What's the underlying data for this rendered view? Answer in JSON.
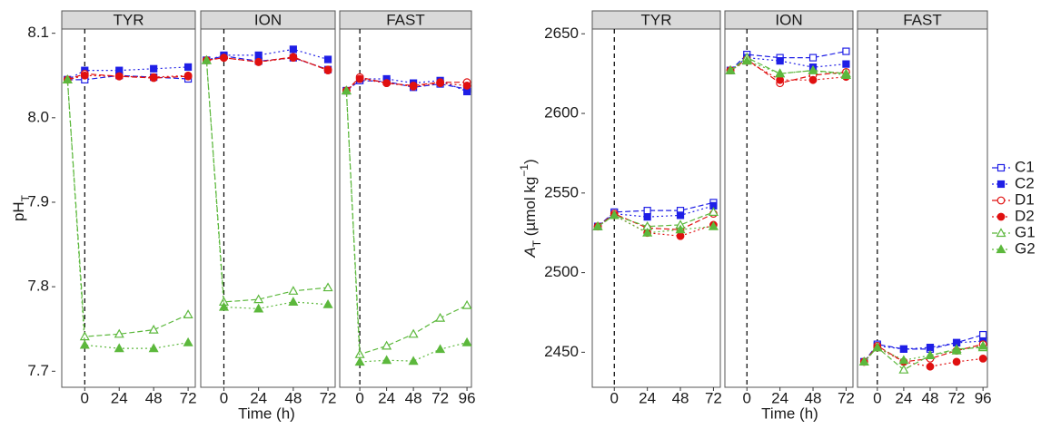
{
  "chart_data": {
    "type": "line",
    "x_label": "Time (h)",
    "vline": 0,
    "series": [
      {
        "name": "C1",
        "color": "#1f1fe6",
        "marker": "square",
        "filled": false,
        "dash": "6,3"
      },
      {
        "name": "C2",
        "color": "#1f1fe6",
        "marker": "square",
        "filled": true,
        "dash": "2,3"
      },
      {
        "name": "D1",
        "color": "#e01010",
        "marker": "circle",
        "filled": false,
        "dash": "6,3"
      },
      {
        "name": "D2",
        "color": "#e01010",
        "marker": "circle",
        "filled": true,
        "dash": "2,3"
      },
      {
        "name": "G1",
        "color": "#5cb83c",
        "marker": "triangle",
        "filled": false,
        "dash": "6,3"
      },
      {
        "name": "G2",
        "color": "#5cb83c",
        "marker": "triangle",
        "filled": true,
        "dash": "2,3"
      }
    ],
    "charts": [
      {
        "y_label": [
          {
            "text": "pH"
          },
          {
            "text": "T",
            "style": "sub"
          }
        ],
        "ylim": [
          7.681,
          8.105
        ],
        "yticks": [
          7.7,
          7.8,
          7.9,
          {
            "value": 8,
            "label": "8.0"
          },
          8.1
        ],
        "panels": [
          {
            "title": "TYR",
            "x": [
              -12,
              0,
              24,
              48,
              72
            ],
            "xlim": [
              -16,
              77
            ],
            "xticks": [
              0,
              24,
              48,
              72
            ],
            "values": [
              [
                8.045,
                8.045,
                8.05,
                8.048,
                8.046
              ],
              [
                8.045,
                8.056,
                8.056,
                8.058,
                8.06
              ],
              [
                8.045,
                8.052,
                8.049,
                8.047,
                8.049
              ],
              [
                8.045,
                8.05,
                8.049,
                8.048,
                8.05
              ],
              [
                8.045,
                7.741,
                7.744,
                7.749,
                7.767
              ],
              [
                8.045,
                7.731,
                7.727,
                7.727,
                7.734
              ]
            ]
          },
          {
            "title": "ION",
            "x": [
              -12,
              0,
              24,
              48,
              72
            ],
            "xlim": [
              -16,
              77
            ],
            "xticks": [
              0,
              24,
              48,
              72
            ],
            "values": [
              [
                8.068,
                8.073,
                8.067,
                8.071,
                8.057
              ],
              [
                8.068,
                8.074,
                8.074,
                8.081,
                8.069
              ],
              [
                8.068,
                8.071,
                8.066,
                8.072,
                8.056
              ],
              [
                8.068,
                8.071,
                8.066,
                8.071,
                8.057
              ],
              [
                8.068,
                7.782,
                7.785,
                7.795,
                7.799
              ],
              [
                8.068,
                7.776,
                7.774,
                7.782,
                7.779
              ]
            ]
          },
          {
            "title": "FAST",
            "x": [
              -12,
              0,
              24,
              48,
              72,
              96
            ],
            "xlim": [
              -18,
              100
            ],
            "xticks": [
              0,
              24,
              48,
              72,
              96
            ],
            "values": [
              [
                8.032,
                8.044,
                8.043,
                8.036,
                8.04,
                8.034
              ],
              [
                8.032,
                8.046,
                8.046,
                8.041,
                8.044,
                8.031
              ],
              [
                8.032,
                8.048,
                8.041,
                8.038,
                8.042,
                8.042
              ],
              [
                8.032,
                8.046,
                8.041,
                8.037,
                8.041,
                8.038
              ],
              [
                8.032,
                7.72,
                7.73,
                7.744,
                7.763,
                7.778
              ],
              [
                8.032,
                7.711,
                7.713,
                7.712,
                7.726,
                7.734
              ]
            ]
          }
        ]
      },
      {
        "y_label": [
          {
            "text": "A",
            "style": "italic"
          },
          {
            "text": "T",
            "style": "sub"
          },
          {
            "text": " (µmol kg"
          },
          {
            "text": "−1",
            "style": "sup"
          },
          {
            "text": ")"
          }
        ],
        "ylim": [
          2428,
          2653
        ],
        "yticks": [
          2450,
          2500,
          2550,
          2600,
          2650
        ],
        "panels": [
          {
            "title": "TYR",
            "x": [
              -12,
              0,
              24,
              48,
              72
            ],
            "xlim": [
              -16,
              77
            ],
            "xticks": [
              0,
              24,
              48,
              72
            ],
            "values": [
              [
                2529,
                2538,
                2539,
                2539,
                2544
              ],
              [
                2529,
                2537,
                2535,
                2536,
                2542
              ],
              [
                2529,
                2537,
                2528,
                2527,
                2537
              ],
              [
                2529,
                2536,
                2525,
                2523,
                2530
              ],
              [
                2529,
                2536,
                2529,
                2530,
                2538
              ],
              [
                2529,
                2536,
                2525,
                2527,
                2529
              ]
            ]
          },
          {
            "title": "ION",
            "x": [
              -12,
              0,
              24,
              48,
              72
            ],
            "xlim": [
              -16,
              77
            ],
            "xticks": [
              0,
              24,
              48,
              72
            ],
            "values": [
              [
                2627,
                2637,
                2635,
                2635,
                2639
              ],
              [
                2627,
                2635,
                2633,
                2629,
                2631
              ],
              [
                2627,
                2634,
                2619,
                2624,
                2626
              ],
              [
                2627,
                2633,
                2621,
                2621,
                2623
              ],
              [
                2627,
                2635,
                2625,
                2627,
                2625
              ],
              [
                2627,
                2633,
                2625,
                2627,
                2624
              ]
            ]
          },
          {
            "title": "FAST",
            "x": [
              -12,
              0,
              24,
              48,
              72,
              96
            ],
            "xlim": [
              -18,
              100
            ],
            "xticks": [
              0,
              24,
              48,
              72,
              96
            ],
            "values": [
              [
                2444,
                2455,
                2452,
                2452,
                2456,
                2461
              ],
              [
                2444,
                2454,
                2452,
                2453,
                2456,
                2457
              ],
              [
                2444,
                2454,
                2444,
                2446,
                2451,
                2455
              ],
              [
                2444,
                2453,
                2444,
                2441,
                2444,
                2446
              ],
              [
                2444,
                2453,
                2439,
                2448,
                2452,
                2453
              ],
              [
                2444,
                2453,
                2445,
                2448,
                2451,
                2454
              ]
            ]
          }
        ]
      }
    ]
  }
}
